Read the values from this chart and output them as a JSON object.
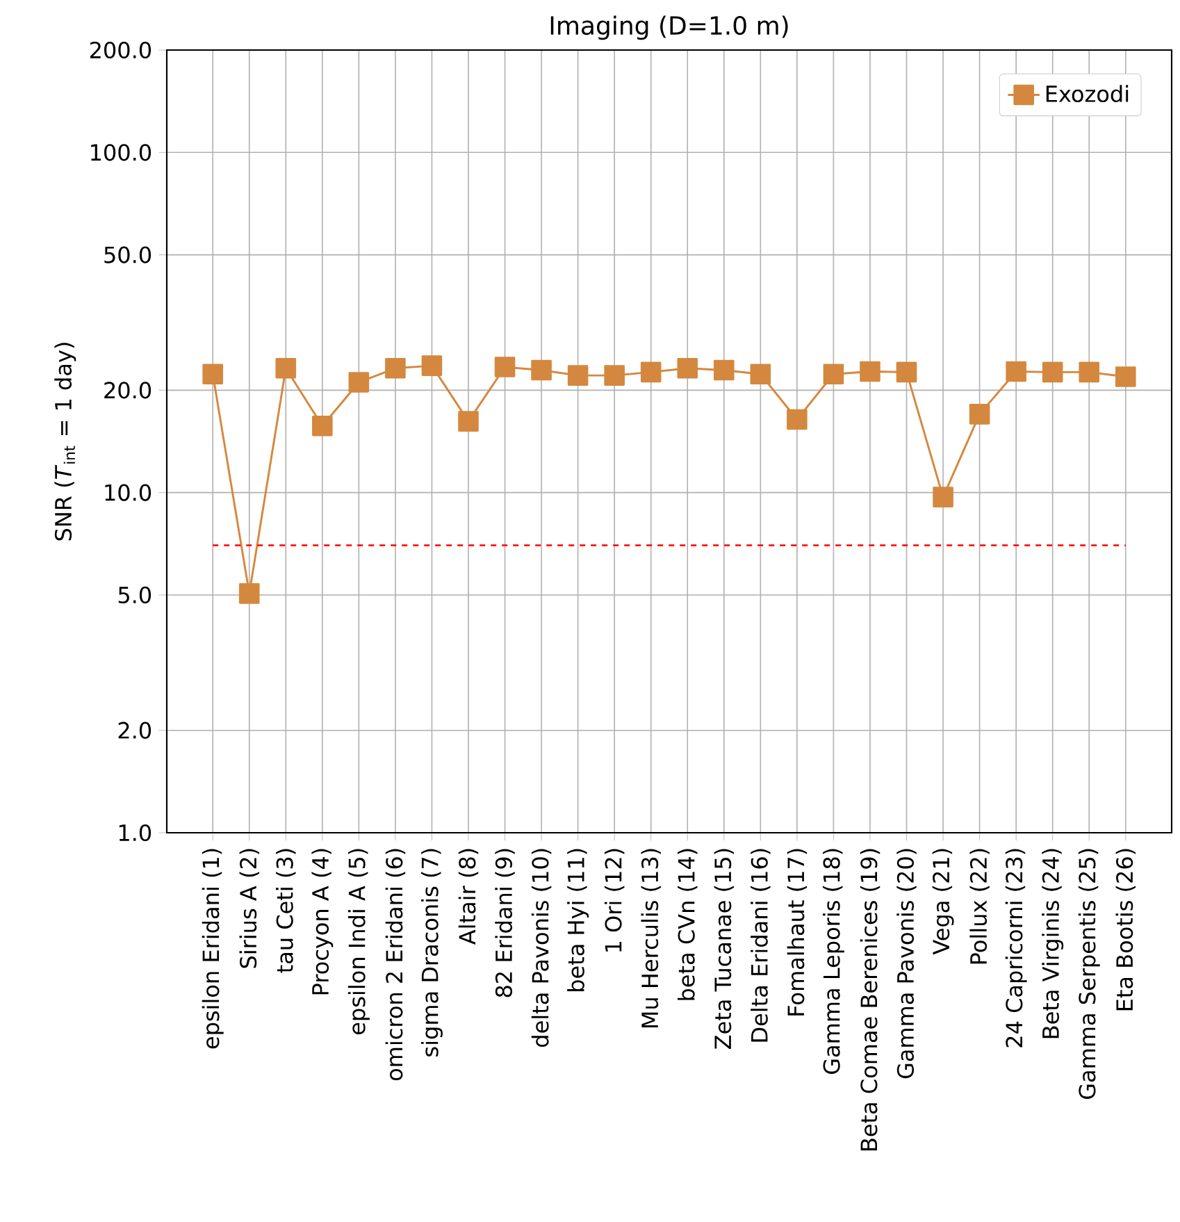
{
  "chart_data": {
    "type": "line",
    "title": "Imaging (D=1.0 m)",
    "ylabel": "SNR (*T*$_{int}$ = 1 day)",
    "categories": [
      "epsilon Eridani (1)",
      "Sirius A (2)",
      "tau Ceti (3)",
      "Procyon A (4)",
      "epsilon Indi A (5)",
      "omicron 2 Eridani (6)",
      "sigma Draconis (7)",
      "Altair (8)",
      "82 Eridani (9)",
      "delta Pavonis (10)",
      "beta Hyi (11)",
      "1 Ori (12)",
      "Mu Herculis (13)",
      "beta CVn (14)",
      "Zeta Tucanae (15)",
      "Delta Eridani (16)",
      "Fomalhaut (17)",
      "Gamma Leporis (18)",
      "Beta Comae Berenices (19)",
      "Gamma Pavonis (20)",
      "Vega (21)",
      "Pollux (22)",
      "24 Capricorni (23)",
      "Beta Virginis (24)",
      "Gamma Serpentis (25)",
      "Eta Bootis (26)"
    ],
    "series": [
      {
        "name": "Exozodi",
        "color": "#d4883f",
        "values": [
          22.3,
          5.05,
          23.2,
          15.7,
          21.1,
          23.2,
          23.6,
          16.2,
          23.4,
          22.9,
          22.1,
          22.1,
          22.6,
          23.2,
          22.9,
          22.3,
          16.4,
          22.3,
          22.7,
          22.6,
          9.7,
          17.0,
          22.7,
          22.6,
          22.6,
          21.9
        ]
      }
    ],
    "ylim": [
      1,
      200
    ],
    "yticks": [
      {
        "value": 1,
        "label": "1.0"
      },
      {
        "value": 2,
        "label": "2.0"
      },
      {
        "value": 5,
        "label": "5.0"
      },
      {
        "value": 10,
        "label": "10.0"
      },
      {
        "value": 20,
        "label": "20.0"
      },
      {
        "value": 50,
        "label": "50.0"
      },
      {
        "value": 100,
        "label": "100.0"
      },
      {
        "value": 200,
        "label": "200.0"
      }
    ],
    "log": "y",
    "grid": true,
    "legend": "top right",
    "marker": "square",
    "line_style": "solid",
    "ref_lines": [
      {
        "axis": "y",
        "value": 7,
        "color": "#ff0000",
        "line_style": "dashed"
      }
    ]
  }
}
